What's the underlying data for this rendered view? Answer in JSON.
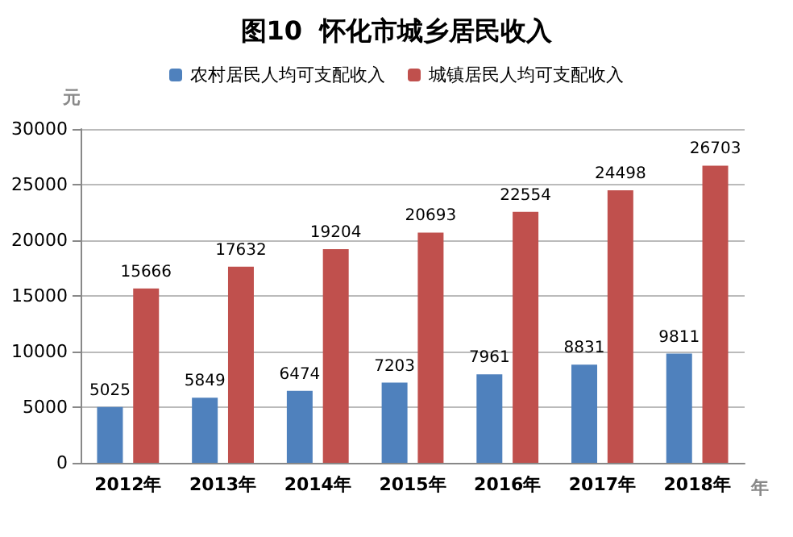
{
  "chart_data": {
    "type": "bar",
    "title": "图10  怀化市城乡居民收入",
    "ylabel": "元",
    "xlabel": "年",
    "categories": [
      "2012年",
      "2013年",
      "2014年",
      "2015年",
      "2016年",
      "2017年",
      "2018年"
    ],
    "series": [
      {
        "name": "农村居民人均可支配收入",
        "color": "#4f81bd",
        "values": [
          5025,
          5849,
          6474,
          7203,
          7961,
          8831,
          9811
        ]
      },
      {
        "name": "城镇居民人均可支配收入",
        "color": "#c0504d",
        "values": [
          15666,
          17632,
          19204,
          20693,
          22554,
          24498,
          26703
        ]
      }
    ],
    "ylim": [
      0,
      30000
    ],
    "yticks": [
      0,
      5000,
      10000,
      15000,
      20000,
      25000,
      30000
    ],
    "grid": "y",
    "legend": "top",
    "data_labels": true
  }
}
